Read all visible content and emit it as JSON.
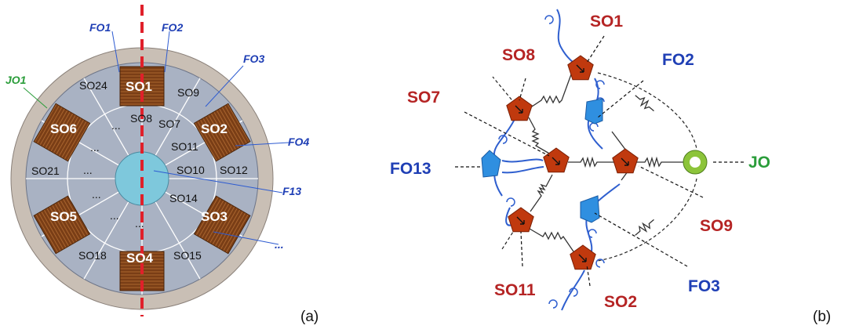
{
  "panel_a": {
    "label": "(a)",
    "coils": [
      "SO1",
      "SO2",
      "SO3",
      "SO4",
      "SO5",
      "SO6"
    ],
    "slots": [
      "SO24",
      "SO9",
      "SO8",
      "SO7",
      "SO11",
      "SO10",
      "SO12",
      "SO14",
      "SO15",
      "SO18",
      "SO21",
      "..."
    ],
    "annotations": {
      "fo1": "FO1",
      "fo2": "FO2",
      "fo3": "FO3",
      "fo4": "FO4",
      "jo1": "JO1",
      "f13": "F13",
      "more": "..."
    },
    "colors": {
      "shaft": "#7ec8dc",
      "coil": "#7a3e16",
      "frame": "#c9bfb5",
      "stator": "#a9b2c3",
      "axis": "#e0202a"
    }
  },
  "panel_b": {
    "label": "(b)",
    "nodes": {
      "so1": "SO1",
      "so8": "SO8",
      "so7": "SO7",
      "so9": "SO9",
      "so11": "SO11",
      "so2": "SO2",
      "fo2": "FO2",
      "fo13": "FO13",
      "fo3": "FO3",
      "jo": "JO"
    },
    "colors": {
      "solid_node": "#c0390e",
      "fluid_node": "#2f8fe0",
      "joint_ring": "#8cc43a",
      "title_red": "#b52424",
      "title_blue": "#1f3fb5",
      "title_green": "#2a9d3a"
    }
  }
}
